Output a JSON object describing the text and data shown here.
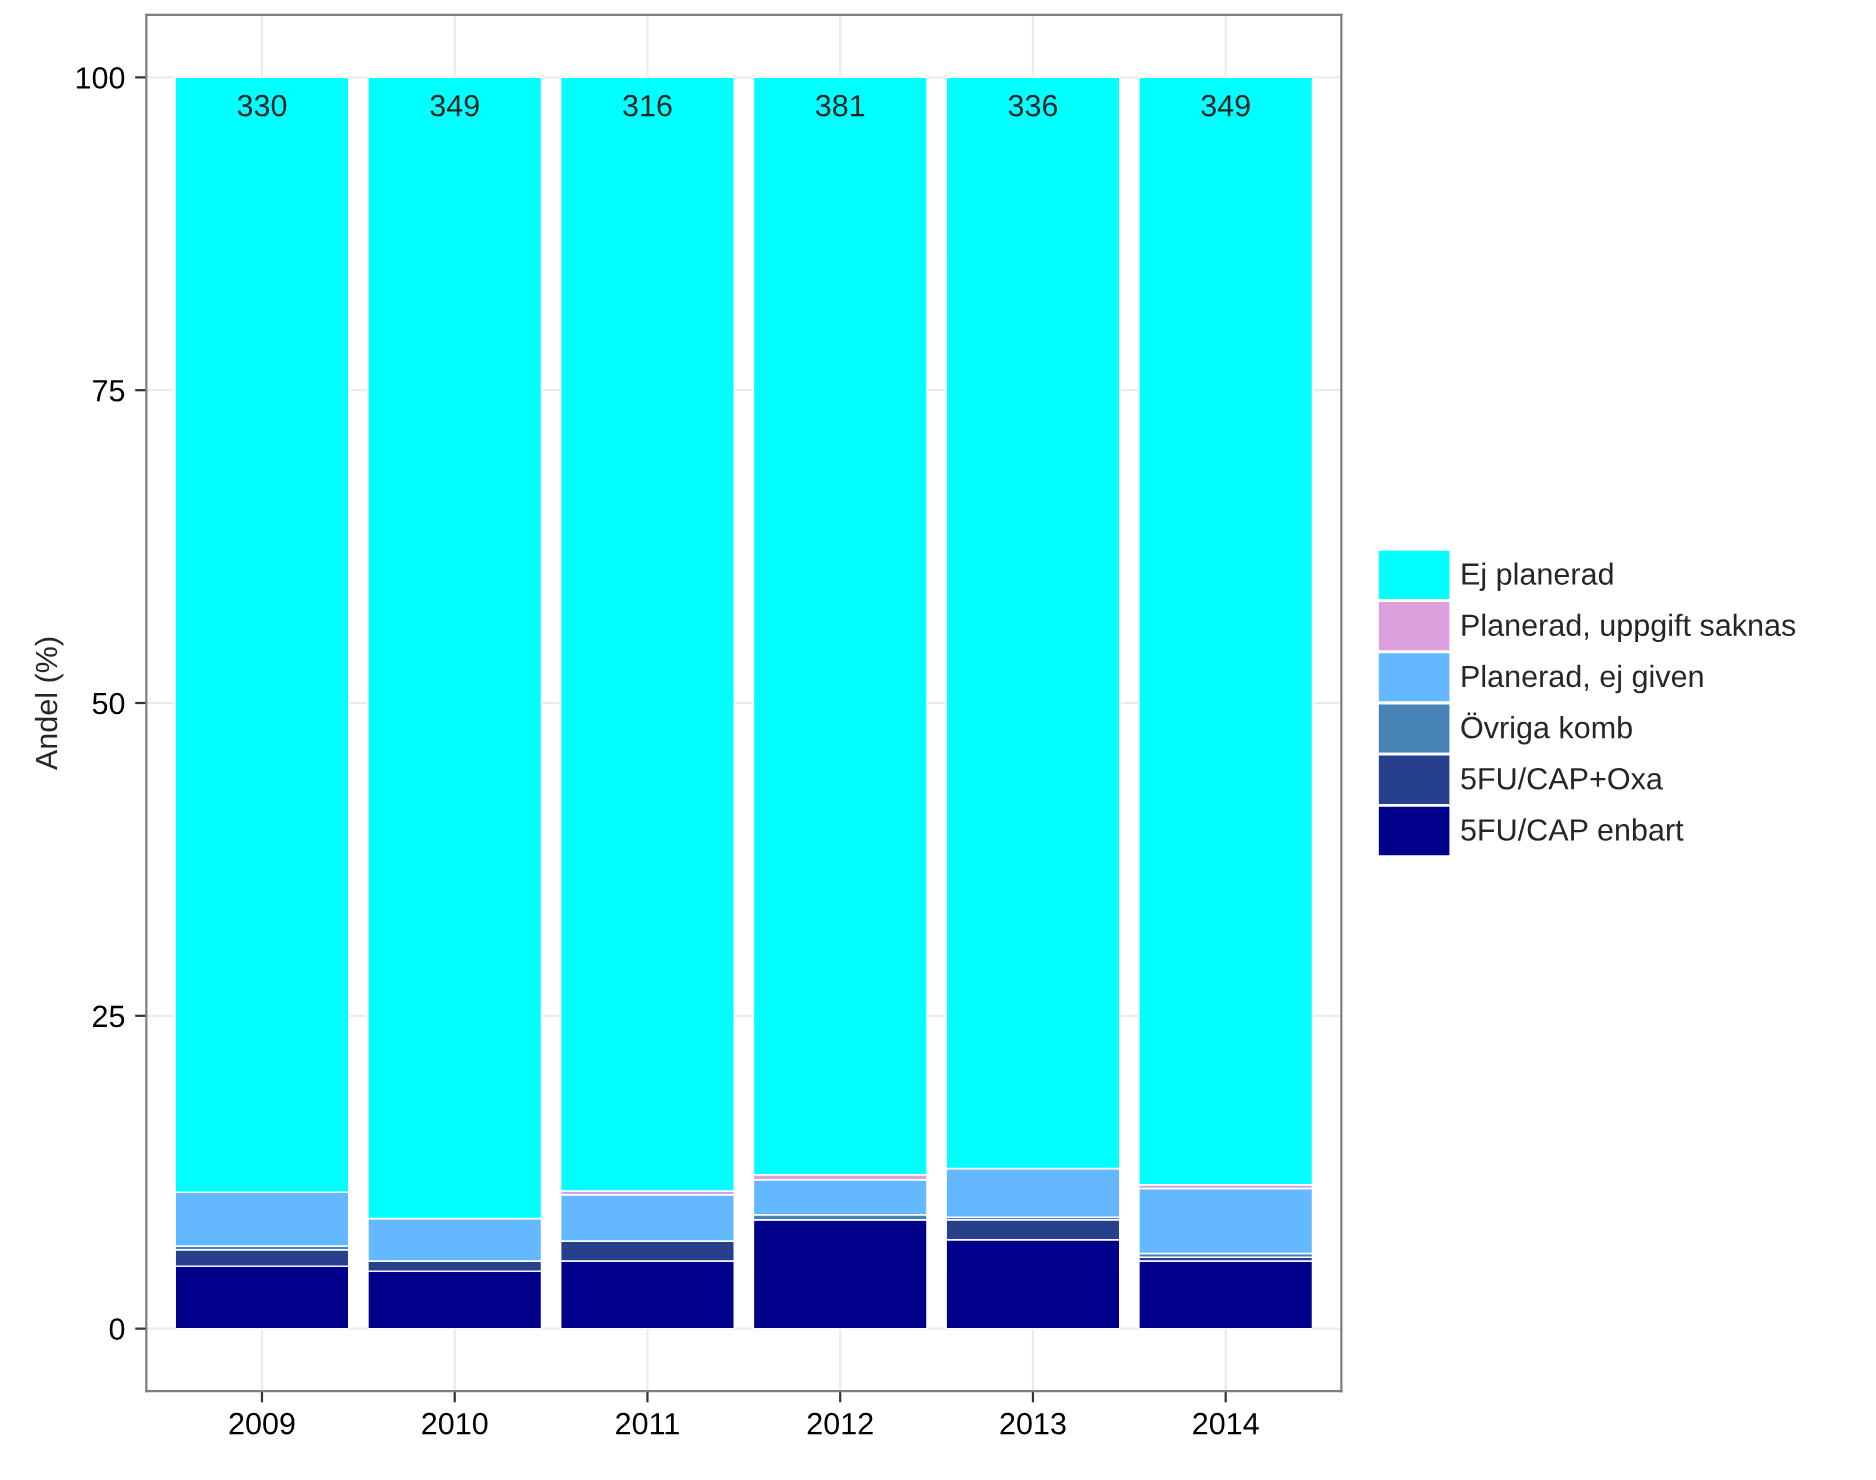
{
  "chart_data": {
    "type": "bar",
    "stacked": true,
    "ylabel": "Andel (%)",
    "categories": [
      "2009",
      "2010",
      "2011",
      "2012",
      "2013",
      "2014"
    ],
    "series": [
      {
        "name": "5FU/CAP enbart",
        "color": "#00008b",
        "values": [
          5.0,
          4.6,
          5.4,
          8.7,
          7.1,
          5.4
        ]
      },
      {
        "name": "5FU/CAP+Oxa",
        "color": "#27408b",
        "values": [
          1.3,
          0.8,
          1.6,
          0,
          1.6,
          0.3
        ]
      },
      {
        "name": "Övriga komb",
        "color": "#4682b4",
        "values": [
          0.3,
          0,
          0,
          0.4,
          0.2,
          0.3
        ]
      },
      {
        "name": "Planerad, ej given",
        "color": "#63b8ff",
        "values": [
          4.3,
          3.4,
          3.7,
          2.8,
          3.9,
          5.2
        ]
      },
      {
        "name": "Planerad, uppgift saknas",
        "color": "#dda0dd",
        "values": [
          0,
          0,
          0.3,
          0.4,
          0,
          0.3
        ]
      },
      {
        "name": "Ej planerad",
        "color": "#00ffff",
        "values": [
          89.1,
          91.2,
          89.0,
          87.7,
          87.2,
          88.5
        ]
      }
    ],
    "annotations": [
      {
        "text": "330",
        "x": "2009",
        "y": 100
      },
      {
        "text": "349",
        "x": "2010",
        "y": 100
      },
      {
        "text": "316",
        "x": "2011",
        "y": 100
      },
      {
        "text": "381",
        "x": "2012",
        "y": 100
      },
      {
        "text": "336",
        "x": "2013",
        "y": 100
      },
      {
        "text": "349",
        "x": "2014",
        "y": 100
      }
    ],
    "ylim": [
      -5,
      105
    ],
    "yticks": [
      0,
      25,
      50,
      75,
      100
    ],
    "grid": true,
    "legend": "right"
  }
}
